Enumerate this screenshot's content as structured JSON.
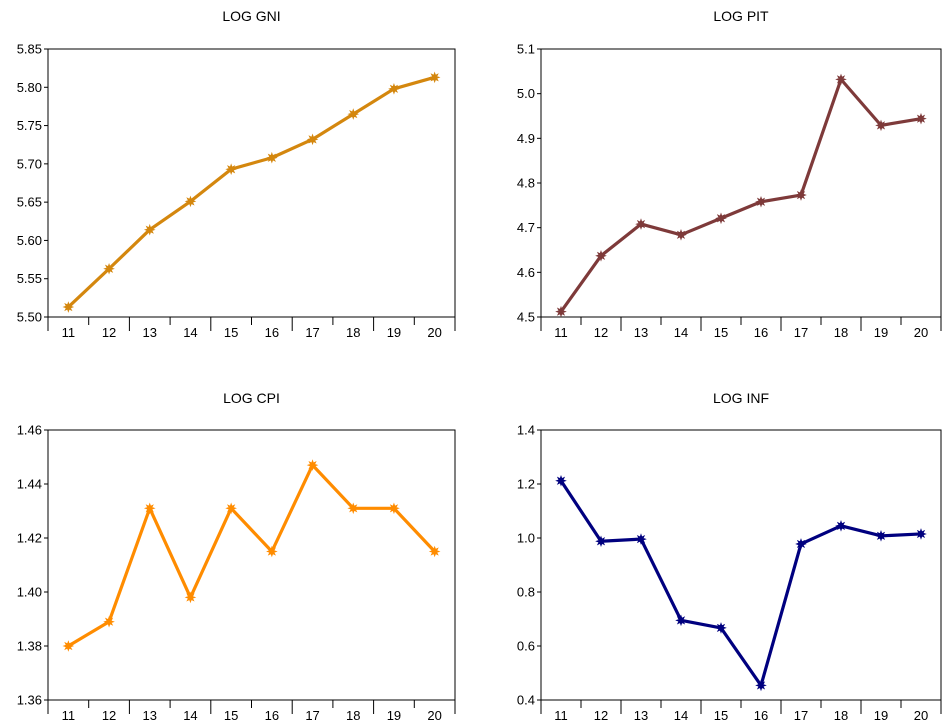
{
  "chart_data": [
    {
      "type": "line",
      "title": "LOG GNI",
      "categories": [
        "11",
        "12",
        "13",
        "14",
        "15",
        "16",
        "17",
        "18",
        "19",
        "20"
      ],
      "series": [
        {
          "values": [
            5.513,
            5.563,
            5.614,
            5.651,
            5.693,
            5.708,
            5.732,
            5.765,
            5.798,
            5.813
          ]
        }
      ],
      "ylim": [
        5.5,
        5.85
      ],
      "yticks": [
        "5.50",
        "5.55",
        "5.60",
        "5.65",
        "5.70",
        "5.75",
        "5.80",
        "5.85"
      ],
      "color": "#D4870E",
      "grid": false,
      "legend": "none"
    },
    {
      "type": "line",
      "title": "LOG PIT",
      "categories": [
        "11",
        "12",
        "13",
        "14",
        "15",
        "16",
        "17",
        "18",
        "19",
        "20"
      ],
      "series": [
        {
          "values": [
            4.512,
            4.637,
            4.708,
            4.684,
            4.721,
            4.758,
            4.773,
            5.032,
            4.929,
            4.944
          ]
        }
      ],
      "ylim": [
        4.5,
        5.1
      ],
      "yticks": [
        "4.5",
        "4.6",
        "4.7",
        "4.8",
        "4.9",
        "5.0",
        "5.1"
      ],
      "color": "#7E3A3A",
      "grid": false,
      "legend": "none"
    },
    {
      "type": "line",
      "title": "LOG CPI",
      "categories": [
        "11",
        "12",
        "13",
        "14",
        "15",
        "16",
        "17",
        "18",
        "19",
        "20"
      ],
      "series": [
        {
          "values": [
            1.38,
            1.389,
            1.431,
            1.398,
            1.431,
            1.415,
            1.447,
            1.431,
            1.431,
            1.415
          ]
        }
      ],
      "ylim": [
        1.36,
        1.46
      ],
      "yticks": [
        "1.36",
        "1.38",
        "1.40",
        "1.42",
        "1.44",
        "1.46"
      ],
      "color": "#FF8C00",
      "grid": false,
      "legend": "none"
    },
    {
      "type": "line",
      "title": "LOG INF",
      "categories": [
        "11",
        "12",
        "13",
        "14",
        "15",
        "16",
        "17",
        "18",
        "19",
        "20"
      ],
      "series": [
        {
          "values": [
            1.212,
            0.988,
            0.996,
            0.695,
            0.667,
            0.454,
            0.978,
            1.045,
            1.008,
            1.015
          ]
        }
      ],
      "ylim": [
        0.4,
        1.4
      ],
      "yticks": [
        "0.4",
        "0.6",
        "0.8",
        "1.0",
        "1.2",
        "1.4"
      ],
      "color": "#00007F",
      "grid": false,
      "legend": "none"
    }
  ]
}
